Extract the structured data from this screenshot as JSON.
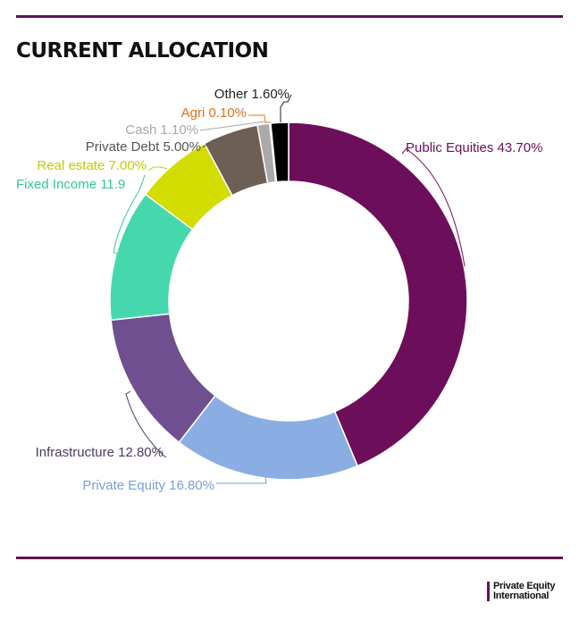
{
  "title": "CURRENT ALLOCATION",
  "brand": {
    "line1": "Private Equity",
    "line2": "International"
  },
  "chart_data": {
    "type": "pie",
    "variant": "donut",
    "title": "CURRENT ALLOCATION",
    "start_angle_deg": 0,
    "direction": "clockwise",
    "series": [
      {
        "name": "Public Equities",
        "value": 43.7,
        "label": "Public Equities 43.70%",
        "color": "#6d0e5a",
        "label_color": "#6d0e5a"
      },
      {
        "name": "Private Equity",
        "value": 16.8,
        "label": "Private Equity 16.80%",
        "color": "#8aaee3",
        "label_color": "#7a9ed6"
      },
      {
        "name": "Infrastructure",
        "value": 12.8,
        "label": "Infrastructure 12.80%",
        "color": "#6f4f8f",
        "label_color": "#4b3a63"
      },
      {
        "name": "Fixed Income",
        "value": 11.9,
        "label": "Fixed Income 11.9",
        "color": "#46d8ad",
        "label_color": "#2ec99a"
      },
      {
        "name": "Real estate",
        "value": 7.0,
        "label": "Real estate 7.00%",
        "color": "#d3dc00",
        "label_color": "#c3cc00"
      },
      {
        "name": "Private Debt",
        "value": 5.0,
        "label": "Private Debt 5.00%",
        "color": "#6e5f55",
        "label_color": "#555555"
      },
      {
        "name": "Cash",
        "value": 1.1,
        "label": "Cash 1.10%",
        "color": "#aaaaaa",
        "label_color": "#a8a8a8"
      },
      {
        "name": "Agri",
        "value": 0.1,
        "label": "Agri 0.10%",
        "color": "#e06f1e",
        "label_color": "#e06f1e"
      },
      {
        "name": "Other",
        "value": 1.6,
        "label": "Other 1.60%",
        "color": "#000000",
        "label_color": "#222222"
      }
    ]
  }
}
